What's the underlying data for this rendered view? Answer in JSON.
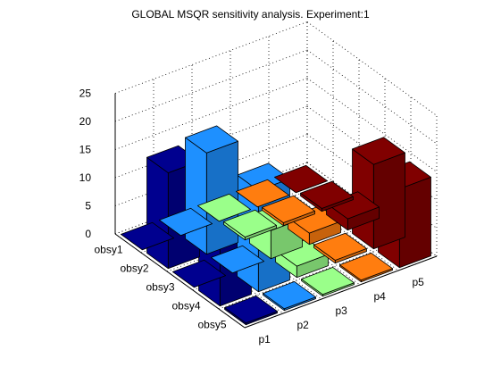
{
  "chart_data": {
    "type": "bar3d",
    "title": "GLOBAL MSQR sensitivity analysis. Experiment:1",
    "xlabel": "",
    "ylabel": "",
    "zlabel": "",
    "column_labels": [
      "p1",
      "p2",
      "p3",
      "p4",
      "p5"
    ],
    "row_labels": [
      "obsy1",
      "obsy2",
      "obsy3",
      "obsy4",
      "obsy5"
    ],
    "zlim": [
      0,
      25
    ],
    "z_ticks": [
      0,
      5,
      10,
      15,
      20,
      25
    ],
    "grid": true,
    "values": [
      [
        0,
        0,
        0,
        0,
        0
      ],
      [
        17,
        18,
        0.5,
        0.5,
        0.5
      ],
      [
        0,
        0,
        5,
        2,
        2
      ],
      [
        17,
        18,
        2,
        0.5,
        15
      ],
      [
        0.3,
        0.3,
        0.3,
        0.3,
        14
      ]
    ],
    "column_colors": [
      "#00008f",
      "#1e90ff",
      "#9aff8a",
      "#ff7d0f",
      "#800000"
    ]
  }
}
